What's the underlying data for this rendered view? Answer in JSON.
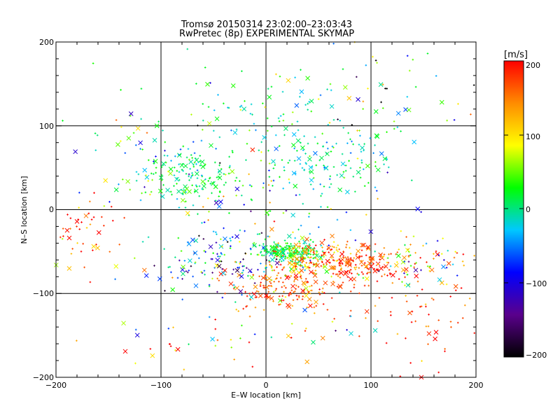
{
  "chart_data": {
    "type": "scatter",
    "title": "Tromsø 20150314 23:02:00–23:03:43",
    "subtitle": "RwPretec (8p) EXPERIMENTAL SKYMAP",
    "xlabel": "E–W location [km]",
    "ylabel": "N–S location [km]",
    "xlim": [
      -200,
      200
    ],
    "ylim": [
      -200,
      200
    ],
    "x_ticks": [
      "−200",
      "−100",
      "0",
      "100",
      "200"
    ],
    "y_ticks": [
      "−200",
      "−100",
      "0",
      "100",
      "200"
    ],
    "grid": true,
    "colorbar": {
      "label": "[m/s]",
      "range": [
        -200,
        200
      ],
      "ticks": [
        "200",
        "100",
        "0",
        "−100",
        "−200"
      ],
      "colors": [
        "#000000",
        "#5a008c",
        "#0000ff",
        "#00c8ff",
        "#00ff00",
        "#ffff00",
        "#ff8c00",
        "#ff0000"
      ]
    },
    "markers": [
      "x",
      "+"
    ],
    "clusters": [
      {
        "x": -70,
        "y": 40,
        "sx": 25,
        "sy": 18,
        "n": 160,
        "v": 5,
        "vs": 25
      },
      {
        "x": 0,
        "y": 130,
        "sx": 40,
        "sy": 25,
        "n": 60,
        "v": 10,
        "vs": 40
      },
      {
        "x": 60,
        "y": 60,
        "sx": 35,
        "sy": 25,
        "n": 140,
        "v": -5,
        "vs": 30
      },
      {
        "x": 20,
        "y": -50,
        "sx": 15,
        "sy": 7,
        "n": 180,
        "v": 15,
        "vs": 20
      },
      {
        "x": 40,
        "y": -60,
        "sx": 25,
        "sy": 12,
        "n": 120,
        "v": 110,
        "vs": 40
      },
      {
        "x": 80,
        "y": -65,
        "sx": 30,
        "sy": 12,
        "n": 200,
        "v": 175,
        "vs": 25
      },
      {
        "x": 20,
        "y": -95,
        "sx": 35,
        "sy": 15,
        "n": 160,
        "v": 170,
        "vs": 30
      },
      {
        "x": -50,
        "y": -60,
        "sx": 35,
        "sy": 20,
        "n": 130,
        "v": -60,
        "vs": 70
      },
      {
        "x": -170,
        "y": -30,
        "sx": 20,
        "sy": 20,
        "n": 50,
        "v": 170,
        "vs": 60
      },
      {
        "x": 150,
        "y": -60,
        "sx": 25,
        "sy": 15,
        "n": 60,
        "v": 40,
        "vs": 80
      },
      {
        "x": 150,
        "y": -120,
        "sx": 35,
        "sy": 40,
        "n": 70,
        "v": 180,
        "vs": 40
      },
      {
        "x": 0,
        "y": 10,
        "sx": 60,
        "sy": 50,
        "n": 130,
        "v": 0,
        "vs": 90
      },
      {
        "x": -120,
        "y": 80,
        "sx": 40,
        "sy": 40,
        "n": 50,
        "v": 20,
        "vs": 60
      },
      {
        "x": 0,
        "y": -150,
        "sx": 90,
        "sy": 25,
        "n": 60,
        "v": 100,
        "vs": 120
      },
      {
        "x": 120,
        "y": 150,
        "sx": 50,
        "sy": 30,
        "n": 40,
        "v": 0,
        "vs": 120
      }
    ]
  }
}
